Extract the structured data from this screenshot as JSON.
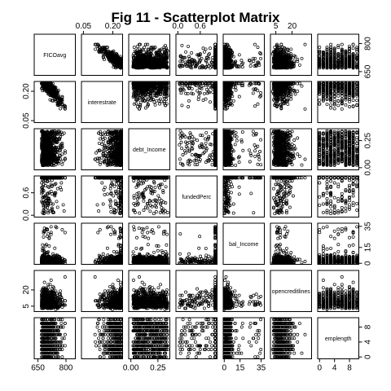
{
  "chart_data": {
    "type": "scatter",
    "title": "Fig 11 - Scatterplot Matrix",
    "variables": [
      {
        "name": "FICOavg",
        "range": [
          630,
          850
        ],
        "ticks": [
          650,
          800
        ],
        "tick_labels": [
          "650",
          "800"
        ]
      },
      {
        "name": "interestrate",
        "range": [
          0.04,
          0.25
        ],
        "ticks": [
          0.05,
          0.2
        ],
        "tick_labels": [
          "0.05",
          "0.20"
        ]
      },
      {
        "name": "debt_Income",
        "range": [
          -0.02,
          0.36
        ],
        "ticks": [
          0.0,
          0.25
        ],
        "tick_labels": [
          "0.00",
          "0.25"
        ]
      },
      {
        "name": "fundedPerc",
        "range": [
          -0.05,
          1.05
        ],
        "ticks": [
          0.0,
          0.6
        ],
        "tick_labels": [
          "0.0",
          "0.6"
        ]
      },
      {
        "name": "bal_Income",
        "range": [
          -1,
          38
        ],
        "ticks": [
          0,
          15,
          35
        ],
        "tick_labels": [
          "0",
          "15",
          "35"
        ]
      },
      {
        "name": "opencreditlines",
        "range": [
          0,
          38
        ],
        "ticks": [
          5,
          20
        ],
        "tick_labels": [
          "5",
          "20"
        ]
      },
      {
        "name": "emplength",
        "range": [
          -0.5,
          10.5
        ],
        "ticks": [
          0,
          4,
          8
        ],
        "tick_labels": [
          "0",
          "4",
          "8"
        ]
      }
    ],
    "tick_placement": {
      "top": [
        1,
        3,
        5
      ],
      "bottom": [
        0,
        2,
        4,
        6
      ],
      "left": [
        1,
        3,
        5
      ],
      "right": [
        0,
        2,
        4,
        6
      ]
    }
  }
}
